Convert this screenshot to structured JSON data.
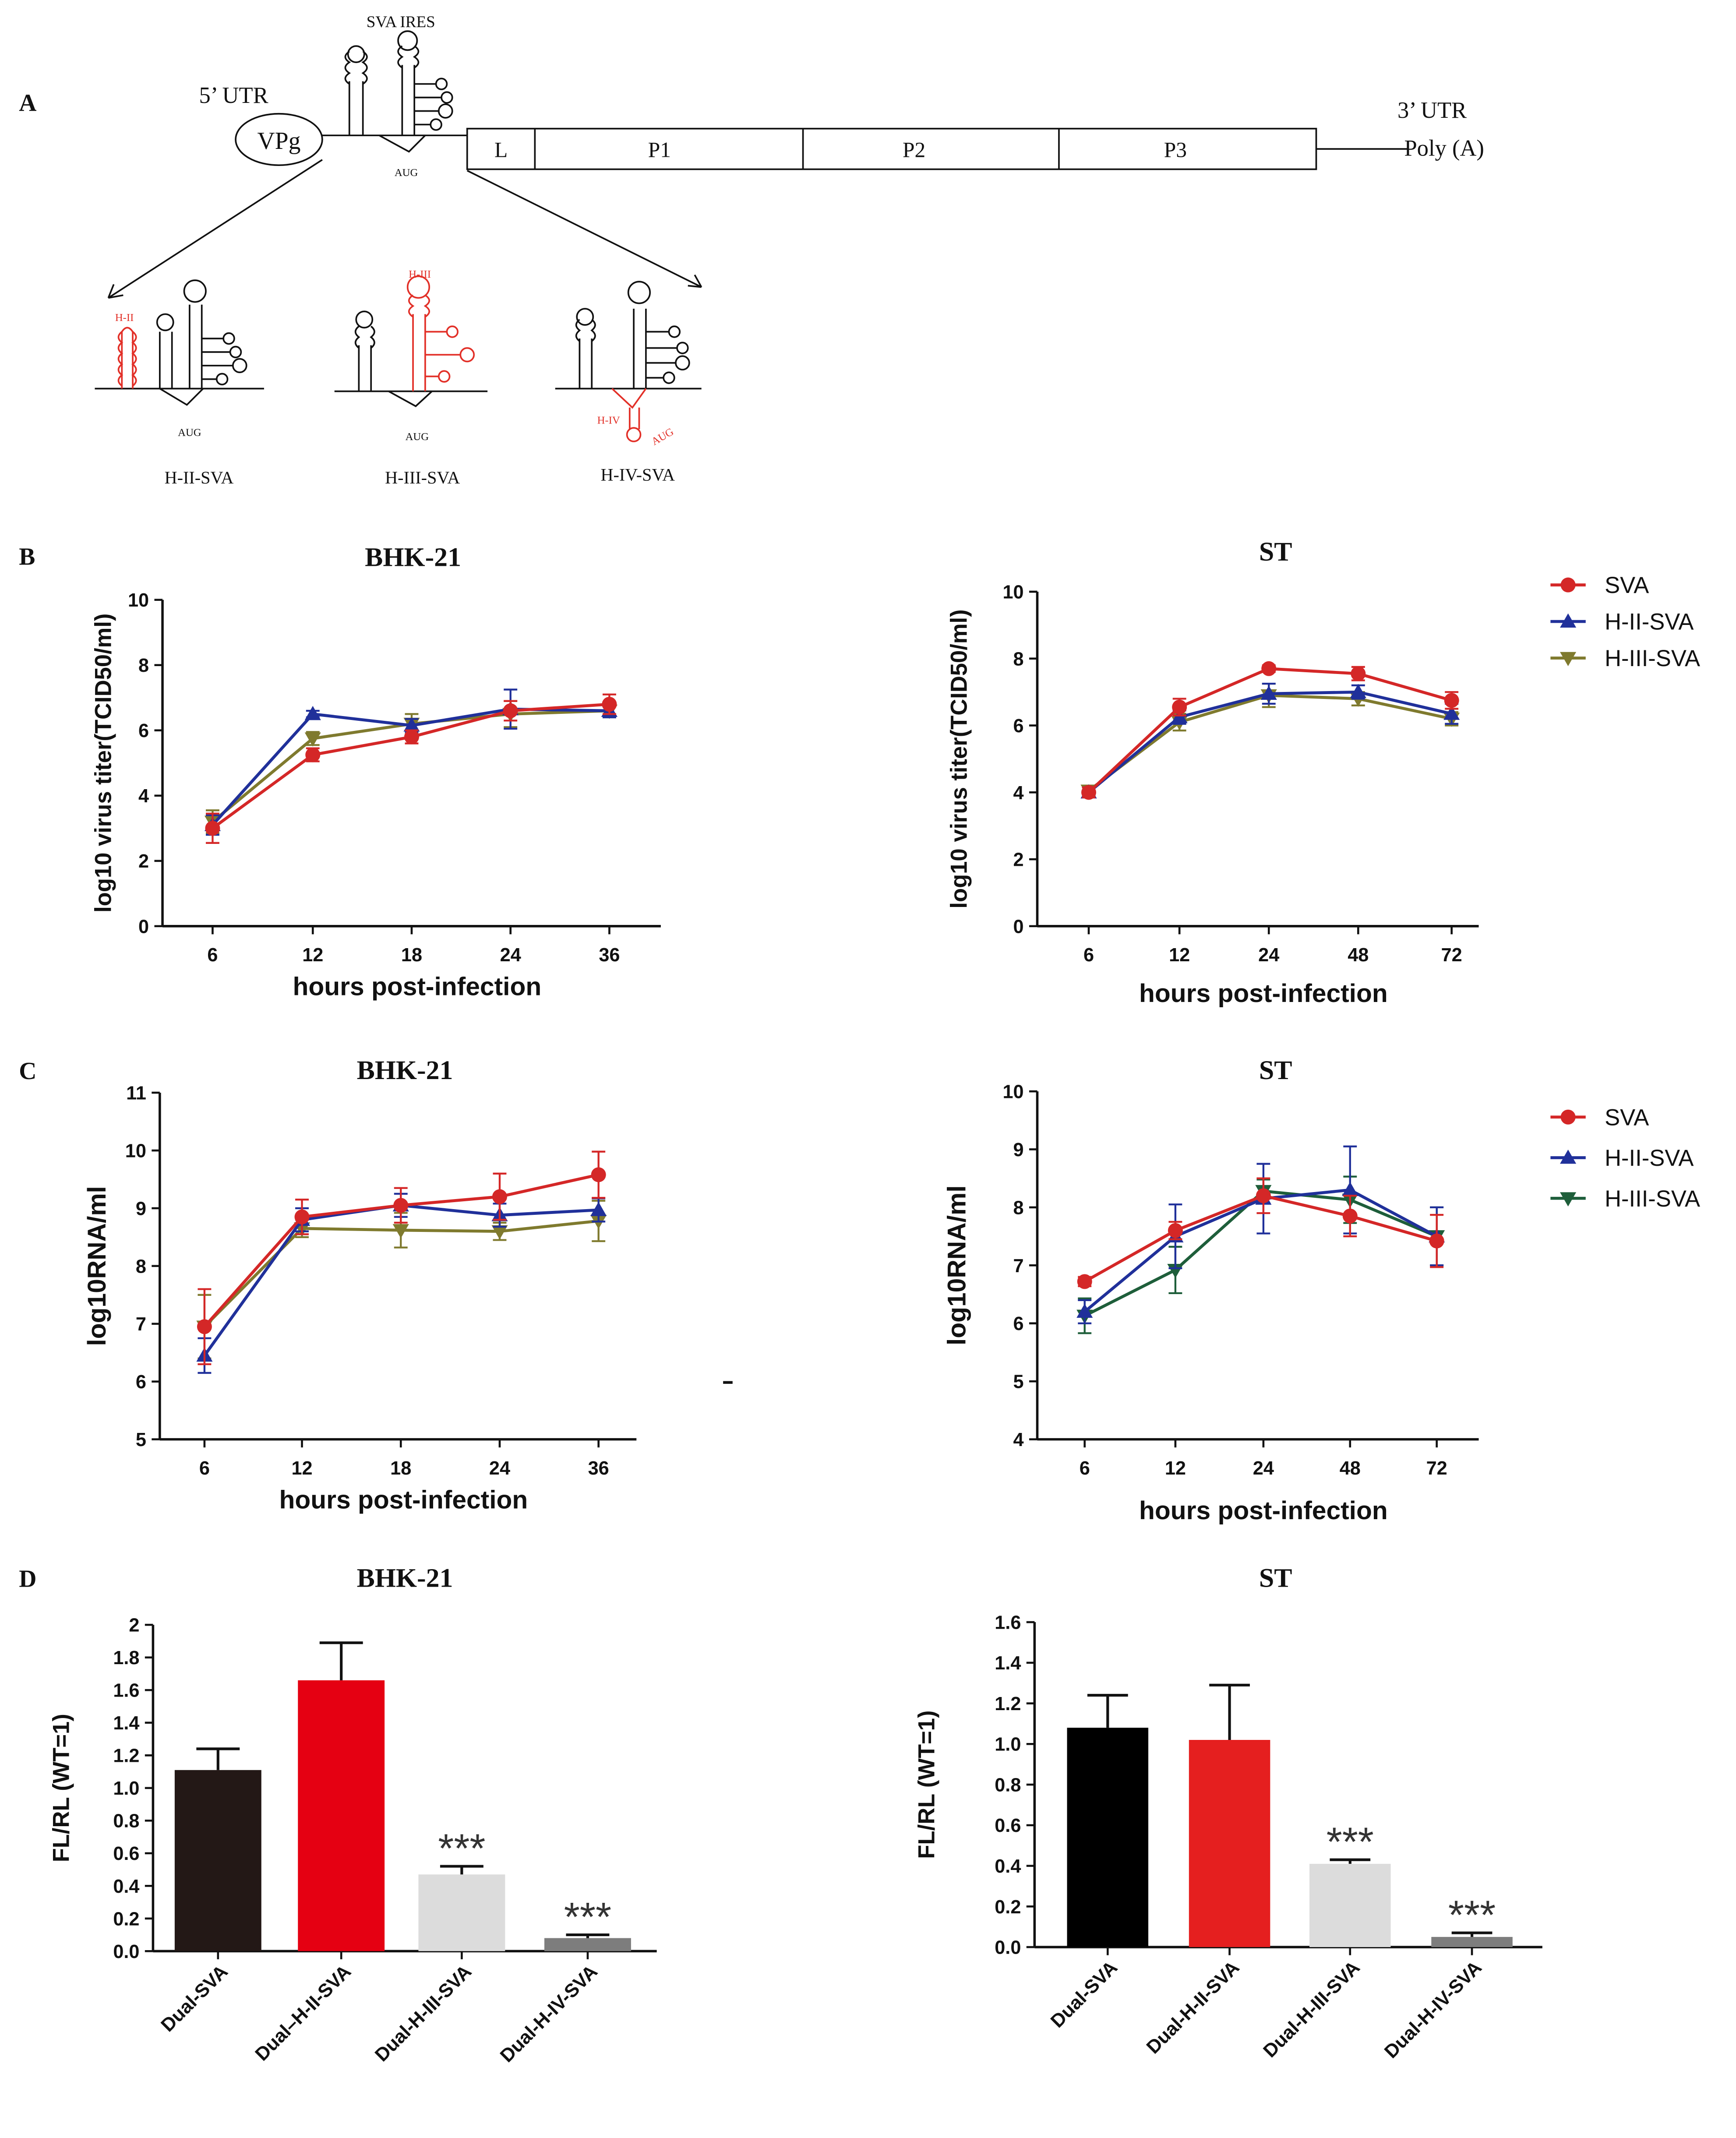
{
  "colors": {
    "sva": "#d42727",
    "h2": "#20309a",
    "h3_olive": "#7f7a2e",
    "h3_green": "#1e5e3a",
    "black": "#111111",
    "red_hairpin": "#e23028",
    "bar_dark": "#231816",
    "bar_red": "#e50012",
    "bar_light": "#dcdcdc",
    "bar_grey": "#7d7d7d",
    "bar_black": "#000000",
    "bar_red2": "#e51f1f"
  },
  "panels": {
    "A": {
      "letter": "A",
      "ires_label": "SVA IRES",
      "utr5": "5’ UTR",
      "vpg": "VPg",
      "aug": "AUG",
      "genome_segments": [
        "L",
        "P1",
        "P2",
        "P3"
      ],
      "utr3": "3’ UTR",
      "polya": "Poly (A)",
      "mutants": [
        {
          "name": "H-II-SVA",
          "tag": "H-II"
        },
        {
          "name": "H-III-SVA",
          "tag": "H-III"
        },
        {
          "name": "H-IV-SVA",
          "tag": "H-IV"
        }
      ]
    },
    "B": {
      "letter": "B"
    },
    "C": {
      "letter": "C"
    },
    "D": {
      "letter": "D"
    }
  },
  "chart_data": [
    {
      "id": "B-BHK21",
      "type": "line",
      "title": "BHK-21",
      "xlabel": "hours post-infection",
      "ylabel": "log10 virus titer(TCID50/ml)",
      "categories": [
        "6",
        "12",
        "18",
        "24",
        "36"
      ],
      "ylim": [
        0,
        10
      ],
      "yticks": [
        0,
        2,
        4,
        6,
        8,
        10
      ],
      "series": [
        {
          "name": "SVA",
          "values": [
            3.0,
            5.25,
            5.8,
            6.6,
            6.8
          ],
          "errors": [
            0.45,
            0.2,
            0.2,
            0.3,
            0.3
          ]
        },
        {
          "name": "H-II-SVA",
          "values": [
            3.1,
            6.5,
            6.15,
            6.65,
            6.6
          ],
          "errors": [
            0.3,
            0.1,
            0.2,
            0.6,
            0.2
          ]
        },
        {
          "name": "H-III-SVA",
          "values": [
            3.2,
            5.75,
            6.2,
            6.5,
            6.6
          ],
          "errors": [
            0.35,
            0.2,
            0.3,
            0.4,
            0.2
          ]
        }
      ]
    },
    {
      "id": "B-ST",
      "type": "line",
      "title": "ST",
      "xlabel": "hours post-infection",
      "ylabel": "log10 virus titer(TCID50/ml)",
      "categories": [
        "6",
        "12",
        "24",
        "48",
        "72"
      ],
      "ylim": [
        0,
        10
      ],
      "yticks": [
        0,
        2,
        4,
        6,
        8,
        10
      ],
      "legend": [
        "SVA",
        "H-II-SVA",
        "H-III-SVA"
      ],
      "series": [
        {
          "name": "SVA",
          "values": [
            4.0,
            6.55,
            7.7,
            7.55,
            6.75
          ],
          "errors": [
            0.15,
            0.25,
            0.1,
            0.2,
            0.25
          ]
        },
        {
          "name": "H-II-SVA",
          "values": [
            4.0,
            6.25,
            6.95,
            7.0,
            6.35
          ],
          "errors": [
            0.15,
            0.2,
            0.3,
            0.2,
            0.3
          ]
        },
        {
          "name": "H-III-SVA",
          "values": [
            4.05,
            6.1,
            6.9,
            6.8,
            6.2
          ],
          "errors": [
            0.15,
            0.25,
            0.35,
            0.2,
            0.2
          ]
        }
      ]
    },
    {
      "id": "C-BHK21",
      "type": "line",
      "title": "BHK-21",
      "xlabel": "hours post-infection",
      "ylabel": "log10RNA/ml",
      "categories": [
        "6",
        "12",
        "18",
        "24",
        "36"
      ],
      "ylim": [
        5,
        11
      ],
      "yticks": [
        5,
        6,
        7,
        8,
        9,
        10,
        11
      ],
      "series": [
        {
          "name": "SVA",
          "values": [
            6.95,
            8.85,
            9.05,
            9.2,
            9.58
          ],
          "errors": [
            0.65,
            0.3,
            0.3,
            0.4,
            0.4
          ]
        },
        {
          "name": "H-II-SVA",
          "values": [
            6.45,
            8.8,
            9.05,
            8.88,
            8.97
          ],
          "errors": [
            0.3,
            0.2,
            0.2,
            0.2,
            0.2
          ]
        },
        {
          "name": "H-III-SVA",
          "values": [
            6.95,
            8.65,
            8.62,
            8.6,
            8.78
          ],
          "errors": [
            0.55,
            0.15,
            0.3,
            0.15,
            0.35
          ]
        }
      ]
    },
    {
      "id": "C-ST",
      "type": "line",
      "title": "ST",
      "xlabel": "hours post-infection",
      "ylabel": "log10RNA/ml",
      "categories": [
        "6",
        "12",
        "24",
        "48",
        "72"
      ],
      "ylim": [
        4,
        10
      ],
      "yticks": [
        4,
        5,
        6,
        7,
        8,
        9,
        10
      ],
      "legend": [
        "SVA",
        "H-II-SVA",
        "H-III-SVA"
      ],
      "series": [
        {
          "name": "SVA",
          "values": [
            6.72,
            7.6,
            8.2,
            7.85,
            7.42
          ],
          "errors": [
            0.08,
            0.15,
            0.3,
            0.35,
            0.45
          ]
        },
        {
          "name": "H-II-SVA",
          "values": [
            6.2,
            7.5,
            8.15,
            8.3,
            7.5
          ],
          "errors": [
            0.2,
            0.55,
            0.6,
            0.75,
            0.5
          ]
        },
        {
          "name": "H-III-SVA",
          "values": [
            6.13,
            6.92,
            8.28,
            8.13,
            7.5
          ],
          "errors": [
            0.3,
            0.4,
            0.2,
            0.4,
            0.5
          ]
        }
      ]
    },
    {
      "id": "D-BHK21",
      "type": "bar",
      "title": "BHK-21",
      "ylabel": "FL/RL (WT=1)",
      "categories": [
        "Dual-SVA",
        "Dual–H-II-SVA",
        "Dual-H-III-SVA",
        "Dual-H-IV-SVA"
      ],
      "values": [
        1.11,
        1.66,
        0.47,
        0.08
      ],
      "errors": [
        0.13,
        0.23,
        0.05,
        0.02
      ],
      "significance": [
        "",
        "",
        "***",
        "***"
      ],
      "ylim": [
        0,
        2
      ],
      "yticks": [
        "0.0",
        "0.2",
        "0.4",
        "0.6",
        "0.8",
        "1.0",
        "1.2",
        "1.4",
        "1.6",
        "1.8",
        "2"
      ]
    },
    {
      "id": "D-ST",
      "type": "bar",
      "title": "ST",
      "ylabel": "FL/RL (WT=1)",
      "categories": [
        "Dual-SVA",
        "Dual-H-II-SVA",
        "Dual-H-III-SVA",
        "Dual-H-IV-SVA"
      ],
      "values": [
        1.08,
        1.02,
        0.41,
        0.05
      ],
      "errors": [
        0.16,
        0.27,
        0.02,
        0.02
      ],
      "significance": [
        "",
        "",
        "***",
        "***"
      ],
      "ylim": [
        0,
        1.6
      ],
      "yticks": [
        "0.0",
        "0.2",
        "0.4",
        "0.6",
        "0.8",
        "1.0",
        "1.2",
        "1.4",
        "1.6"
      ]
    }
  ]
}
